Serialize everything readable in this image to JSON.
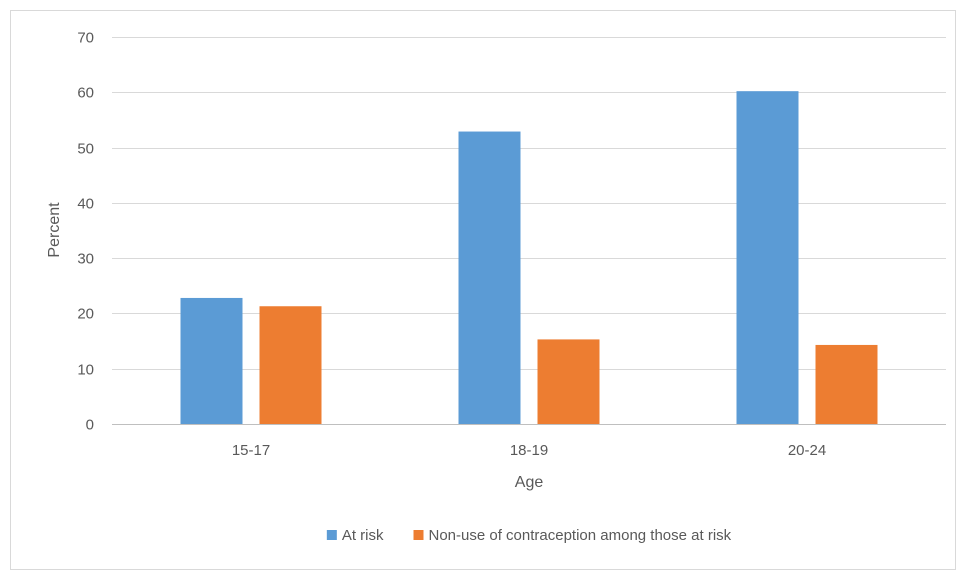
{
  "chart_data": {
    "type": "bar",
    "categories": [
      "15-17",
      "18-19",
      "20-24"
    ],
    "series": [
      {
        "name": "At risk",
        "values": [
          22.8,
          52.9,
          60.2
        ],
        "color": "#5b9bd5"
      },
      {
        "name": "Non-use of contraception among those at risk",
        "values": [
          21.3,
          15.3,
          14.3
        ],
        "color": "#ed7d31"
      }
    ],
    "xlabel": "Age",
    "ylabel": "Percent",
    "ylim": [
      0,
      70
    ],
    "yticks": [
      0,
      10,
      20,
      30,
      40,
      50,
      60,
      70
    ],
    "grid": true,
    "legend": "bottom"
  }
}
